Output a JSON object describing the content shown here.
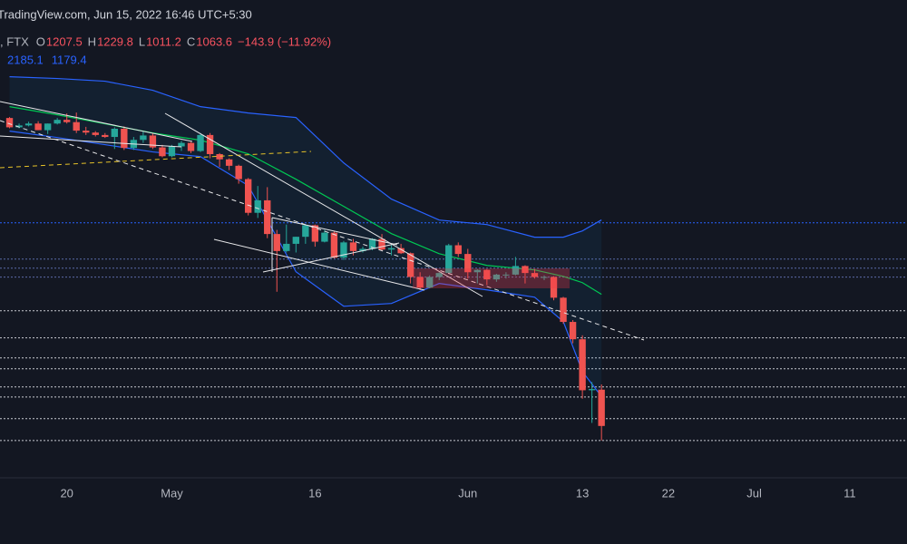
{
  "chart_data": {
    "type": "candlestick",
    "watermark": "TradingView.com, Jun 15, 2022 16:46 UTC+5:30",
    "symbol": ", FTX",
    "ohlc_legend": [
      {
        "label": "O",
        "value": 1207.5
      },
      {
        "label": "H",
        "value": 1229.8
      },
      {
        "label": "L",
        "value": 1011.2
      },
      {
        "label": "C",
        "value": 1063.6
      }
    ],
    "change_label": "−143.9 (−11.92%)",
    "bb_legend": [
      2185.1,
      1179.4
    ],
    "log_scale": true,
    "ylim": [
      893,
      4712
    ],
    "xlim": [
      "2022-04-13",
      "2022-07-17"
    ],
    "xticks": [
      {
        "value": "2022-04-20",
        "label": "20"
      },
      {
        "value": "2022-05-01",
        "label": "May"
      },
      {
        "value": "2022-05-16",
        "label": "16"
      },
      {
        "value": "2022-06-01",
        "label": "Jun"
      },
      {
        "value": "2022-06-13",
        "label": "13"
      },
      {
        "value": "2022-06-22",
        "label": "22"
      },
      {
        "value": "2022-07-01",
        "label": "Jul"
      },
      {
        "value": "2022-07-11",
        "label": "11"
      }
    ],
    "up_color": "#26a69a",
    "down_color": "#ef5350",
    "candles": {
      "x": [
        "2022-04-14",
        "2022-04-15",
        "2022-04-16",
        "2022-04-17",
        "2022-04-18",
        "2022-04-19",
        "2022-04-20",
        "2022-04-21",
        "2022-04-22",
        "2022-04-23",
        "2022-04-24",
        "2022-04-25",
        "2022-04-26",
        "2022-04-27",
        "2022-04-28",
        "2022-04-29",
        "2022-04-30",
        "2022-05-01",
        "2022-05-02",
        "2022-05-03",
        "2022-05-04",
        "2022-05-05",
        "2022-05-06",
        "2022-05-07",
        "2022-05-08",
        "2022-05-09",
        "2022-05-10",
        "2022-05-11",
        "2022-05-12",
        "2022-05-13",
        "2022-05-14",
        "2022-05-15",
        "2022-05-16",
        "2022-05-17",
        "2022-05-18",
        "2022-05-19",
        "2022-05-20",
        "2022-05-21",
        "2022-05-22",
        "2022-05-23",
        "2022-05-24",
        "2022-05-25",
        "2022-05-26",
        "2022-05-27",
        "2022-05-28",
        "2022-05-29",
        "2022-05-30",
        "2022-05-31",
        "2022-06-01",
        "2022-06-02",
        "2022-06-03",
        "2022-06-04",
        "2022-06-05",
        "2022-06-06",
        "2022-06-07",
        "2022-06-08",
        "2022-06-09",
        "2022-06-10",
        "2022-06-11",
        "2022-06-12",
        "2022-06-13",
        "2022-06-14",
        "2022-06-15"
      ],
      "open": [
        3120,
        3020,
        3040,
        3060,
        2990,
        3060,
        3100,
        3075,
        2985,
        2965,
        2940,
        2920,
        3005,
        2810,
        2890,
        2935,
        2815,
        2730,
        2825,
        2860,
        2780,
        2940,
        2750,
        2700,
        2640,
        2520,
        2240,
        2340,
        2080,
        1960,
        2010,
        2060,
        2145,
        2025,
        2090,
        1915,
        2020,
        1960,
        1975,
        2045,
        1970,
        1980,
        1945,
        1790,
        1725,
        1790,
        1815,
        2000,
        1940,
        1820,
        1835,
        1775,
        1805,
        1805,
        1860,
        1815,
        1790,
        1790,
        1665,
        1530,
        1440,
        1205,
        1207.5
      ],
      "high": [
        3130,
        3060,
        3080,
        3085,
        3060,
        3120,
        3170,
        3180,
        3025,
        2980,
        2960,
        3020,
        3030,
        2920,
        2980,
        2960,
        2840,
        2840,
        2880,
        2870,
        2960,
        2960,
        2760,
        2710,
        2650,
        2530,
        2460,
        2450,
        2110,
        2150,
        2060,
        2150,
        2150,
        2110,
        2100,
        2030,
        2045,
        1990,
        2050,
        2080,
        2000,
        2010,
        1950,
        1820,
        1800,
        1820,
        2010,
        2020,
        1975,
        1840,
        1840,
        1810,
        1820,
        1920,
        1865,
        1840,
        1800,
        1795,
        1670,
        1540,
        1460,
        1240,
        1229.8
      ],
      "low": [
        3010,
        3010,
        3030,
        2990,
        2950,
        3050,
        3060,
        2960,
        2940,
        2925,
        2910,
        2800,
        2790,
        2790,
        2860,
        2800,
        2720,
        2720,
        2780,
        2760,
        2770,
        2710,
        2630,
        2600,
        2480,
        2220,
        2200,
        2050,
        1700,
        1950,
        1950,
        2010,
        1990,
        2020,
        1910,
        1900,
        1930,
        1950,
        1965,
        1960,
        1930,
        1940,
        1750,
        1710,
        1720,
        1770,
        1810,
        1920,
        1780,
        1750,
        1740,
        1760,
        1780,
        1800,
        1750,
        1780,
        1770,
        1650,
        1520,
        1420,
        1170,
        1075,
        1011.2
      ],
      "close": [
        3020,
        3040,
        3060,
        2990,
        3060,
        3100,
        3075,
        2985,
        2965,
        2940,
        2920,
        3005,
        2810,
        2890,
        2935,
        2815,
        2730,
        2825,
        2860,
        2780,
        2940,
        2750,
        2700,
        2640,
        2520,
        2240,
        2340,
        2080,
        1960,
        2010,
        2060,
        2145,
        2025,
        2090,
        1915,
        2020,
        1960,
        1975,
        2045,
        1970,
        1980,
        1945,
        1790,
        1725,
        1790,
        1815,
        2000,
        1940,
        1820,
        1835,
        1775,
        1805,
        1805,
        1860,
        1815,
        1790,
        1790,
        1665,
        1530,
        1440,
        1205,
        1210,
        1063.6
      ]
    },
    "bands": {
      "x": [
        "2022-04-14",
        "2022-04-19",
        "2022-04-24",
        "2022-04-29",
        "2022-05-04",
        "2022-05-09",
        "2022-05-14",
        "2022-05-19",
        "2022-05-24",
        "2022-05-29",
        "2022-06-03",
        "2022-06-08",
        "2022-06-11",
        "2022-06-13",
        "2022-06-15"
      ],
      "upper": [
        3604,
        3582,
        3548,
        3437,
        3246,
        3175,
        3125,
        2667,
        2350,
        2184,
        2150,
        2057,
        2057,
        2103,
        2185.1
      ],
      "middle": [
        3246,
        3155,
        3057,
        2961,
        2887,
        2753,
        2519,
        2291,
        2083,
        1942,
        1864,
        1835,
        1794,
        1755,
        1685
      ],
      "lower": [
        2980,
        2914,
        2842,
        2771,
        2726,
        2464,
        1823,
        1616,
        1632,
        1750,
        1711,
        1668,
        1532,
        1286,
        1179.4
      ],
      "upper_color": "#2962ff",
      "middle_color": "#00c853",
      "lower_color": "#2962ff"
    },
    "levels": [
      2163,
      1906,
      1846,
      1789,
      1591,
      1447,
      1349,
      1299,
      1219,
      1177,
      1091,
      1011
    ],
    "level_colors": [
      "#2962ff",
      "#5b6aa8",
      "#5b6aa8",
      "#5b6aa8",
      "#c9cbd2",
      "#c9cbd2",
      "#c9cbd2",
      "#c9cbd2",
      "#c9cbd2",
      "#c9cbd2",
      "#c9cbd2",
      "#c9cbd2"
    ]
  }
}
